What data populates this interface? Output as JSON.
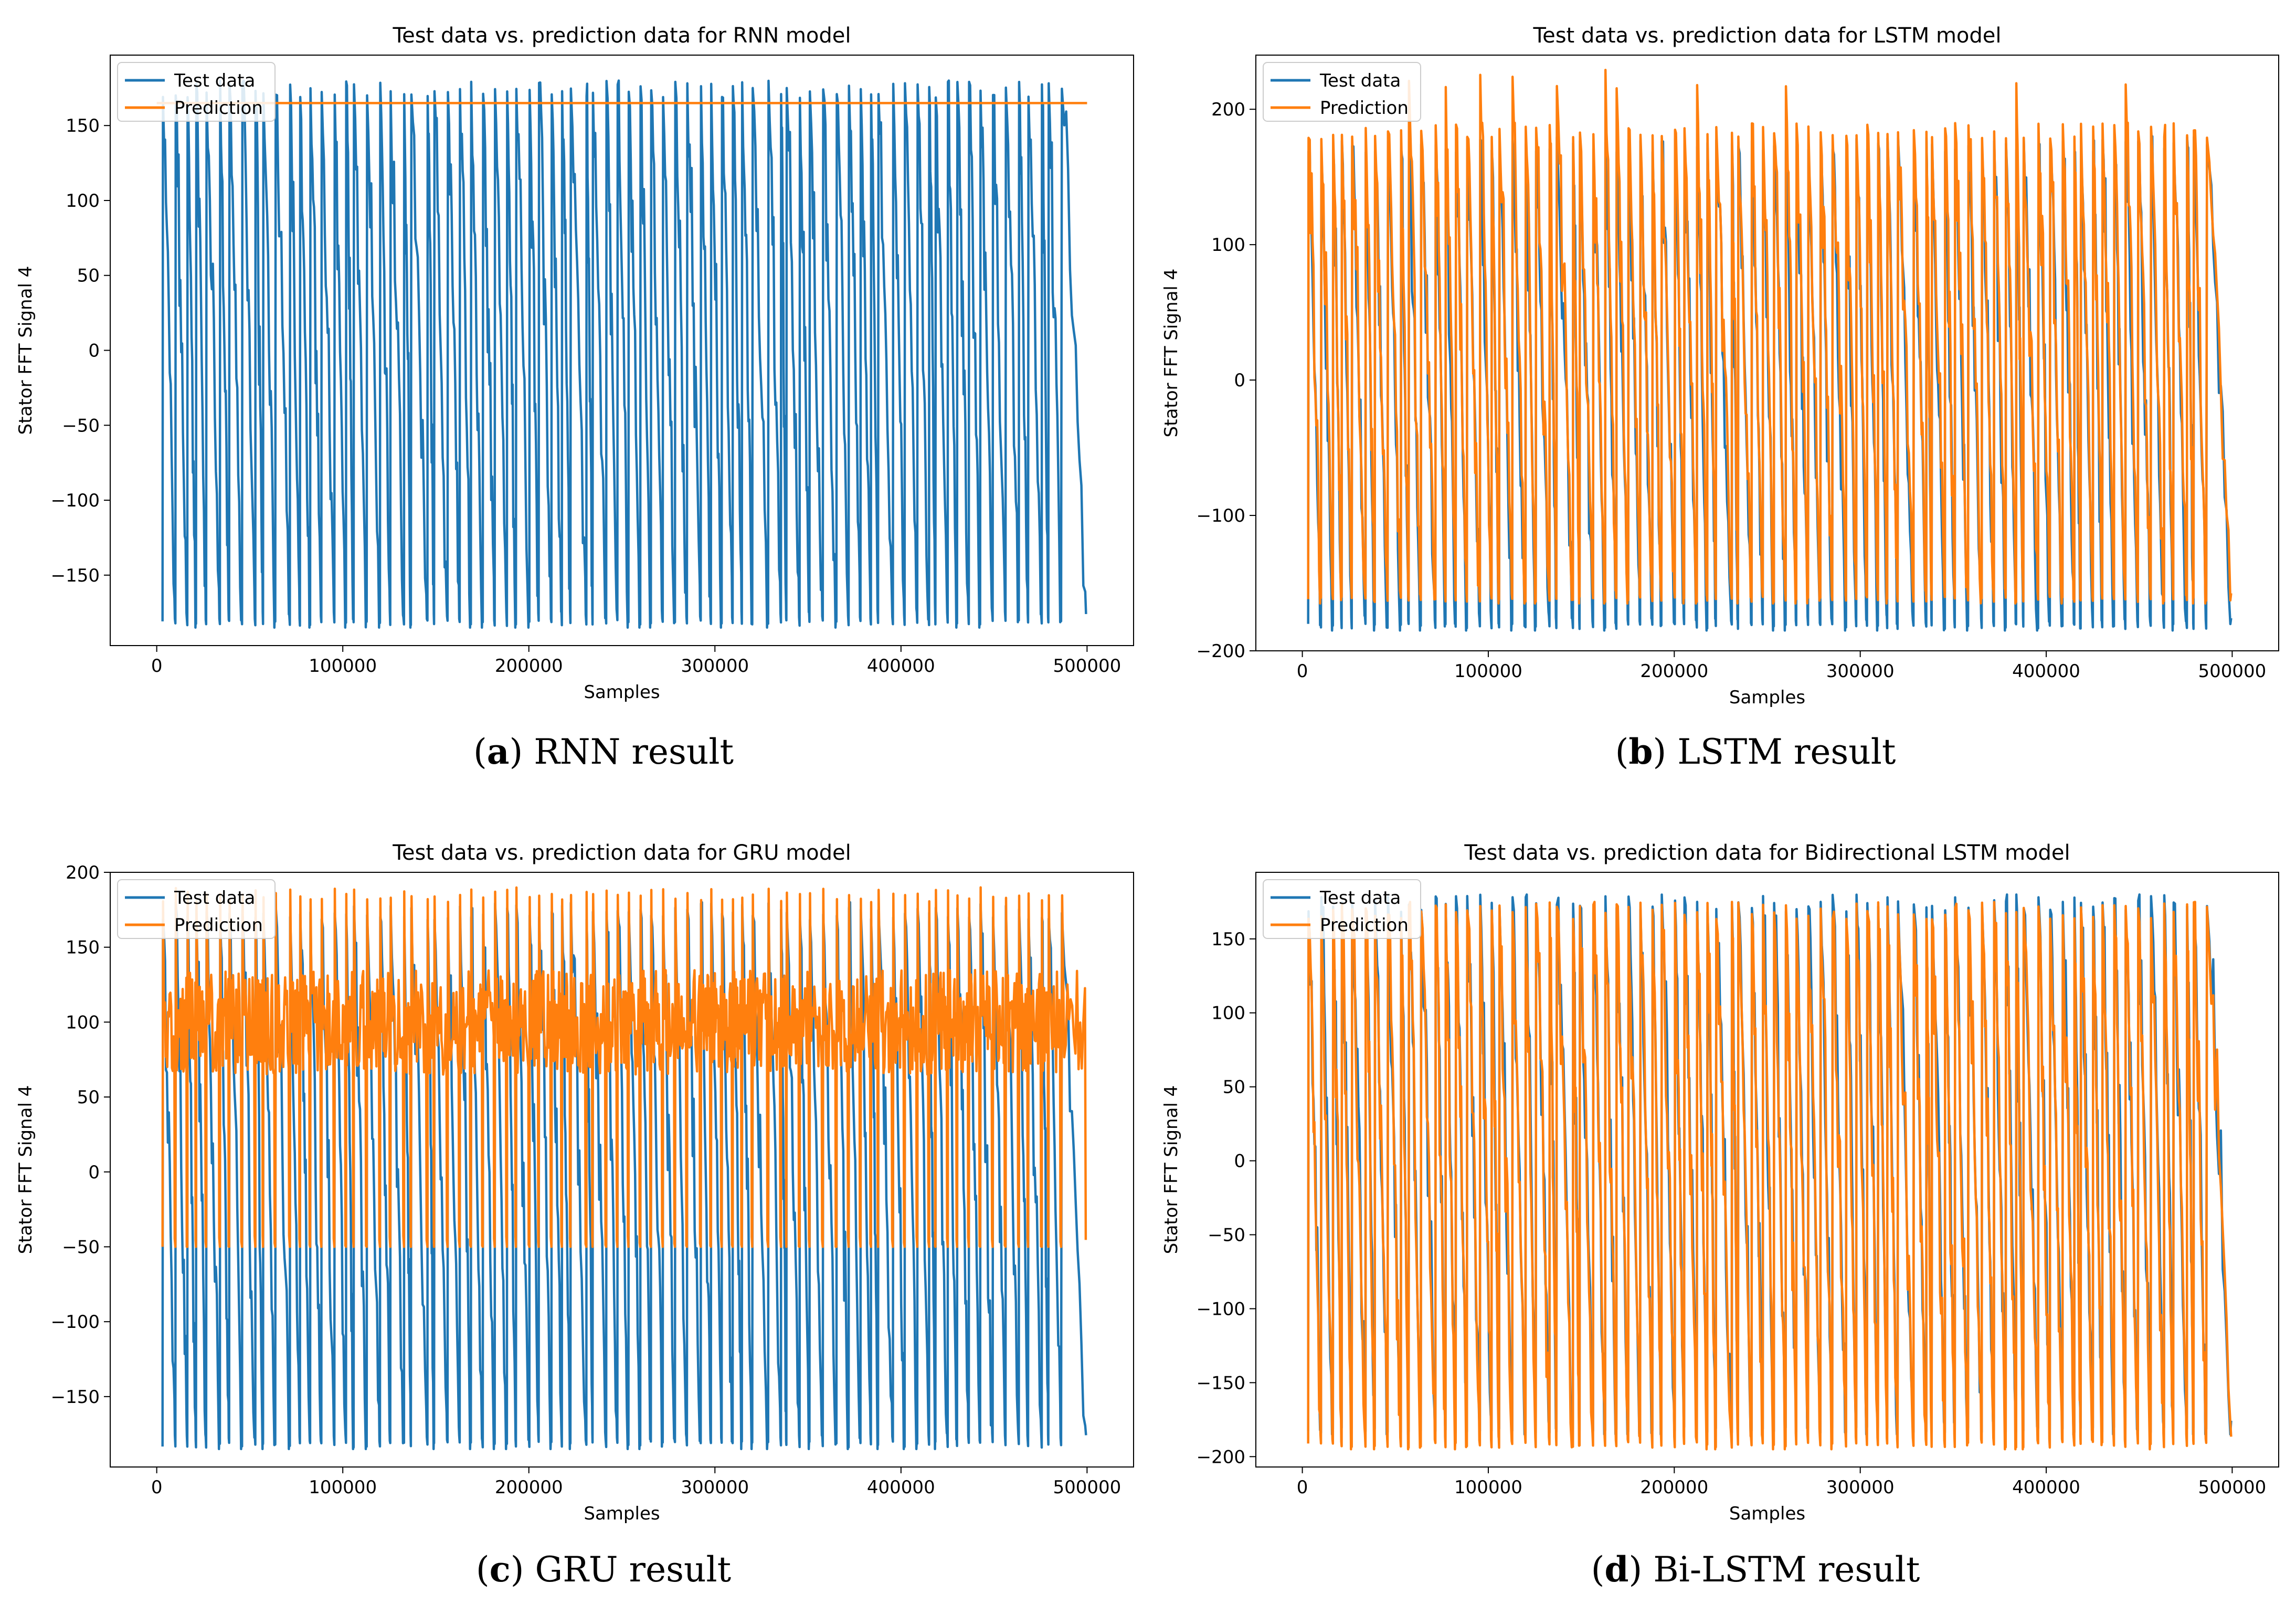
{
  "chart_data": [
    {
      "type": "line",
      "title": "Test data vs. prediction data for RNN model",
      "xlabel": "Samples",
      "ylabel": "Stator FFT Signal 4",
      "caption_letter": "a",
      "caption_text": " RNN result",
      "xlim": [
        -25000,
        525000
      ],
      "ylim": [
        -197,
        197
      ],
      "xticks": [
        0,
        100000,
        200000,
        300000,
        400000,
        500000
      ],
      "xtick_labels": [
        "0",
        "100000",
        "200000",
        "300000",
        "400000",
        "500000"
      ],
      "yticks": [
        150,
        100,
        50,
        0,
        -50,
        -100,
        -150
      ],
      "ytick_labels": [
        "150",
        "100",
        "50",
        "0",
        "−50",
        "−100",
        "−150"
      ],
      "legend": [
        "Test data",
        "Prediction"
      ],
      "legend_position": "top-left",
      "series": [
        {
          "name": "Test data",
          "color": "#1f77b4",
          "pattern": "oscillation",
          "range": [
            -180,
            180
          ],
          "cycles": 80
        },
        {
          "name": "Prediction",
          "color": "#ff7f0e",
          "pattern": "constant",
          "value": 165
        }
      ]
    },
    {
      "type": "line",
      "title": "Test data vs. prediction data for LSTM model",
      "xlabel": "Samples",
      "ylabel": "Stator FFT Signal 4",
      "caption_letter": "b",
      "caption_text": " LSTM result",
      "xlim": [
        -25000,
        525000
      ],
      "ylim": [
        -200,
        240
      ],
      "xticks": [
        0,
        100000,
        200000,
        300000,
        400000,
        500000
      ],
      "xtick_labels": [
        "0",
        "100000",
        "200000",
        "300000",
        "400000",
        "500000"
      ],
      "yticks": [
        200,
        100,
        0,
        -100,
        -200
      ],
      "ytick_labels": [
        "200",
        "100",
        "0",
        "−100",
        "−200"
      ],
      "legend": [
        "Test data",
        "Prediction"
      ],
      "legend_position": "top-left",
      "series": [
        {
          "name": "Test data",
          "color": "#1f77b4",
          "pattern": "oscillation",
          "range": [
            -180,
            180
          ],
          "cycles": 80
        },
        {
          "name": "Prediction",
          "color": "#ff7f0e",
          "pattern": "oscillation",
          "range": [
            -160,
            190
          ],
          "peak_max": 230,
          "cycles": 80
        }
      ]
    },
    {
      "type": "line",
      "title": "Test data vs. prediction data for GRU model",
      "xlabel": "Samples",
      "ylabel": "Stator FFT Signal 4",
      "caption_letter": "c",
      "caption_text": " GRU result",
      "xlim": [
        -25000,
        525000
      ],
      "ylim": [
        -197,
        200
      ],
      "xticks": [
        0,
        100000,
        200000,
        300000,
        400000,
        500000
      ],
      "xtick_labels": [
        "0",
        "100000",
        "200000",
        "300000",
        "400000",
        "500000"
      ],
      "yticks": [
        200,
        150,
        100,
        50,
        0,
        -50,
        -100,
        -150
      ],
      "ytick_labels": [
        "200",
        "150",
        "100",
        "50",
        "0",
        "−50",
        "−100",
        "−150"
      ],
      "legend": [
        "Test data",
        "Prediction"
      ],
      "legend_position": "top-left",
      "series": [
        {
          "name": "Test data",
          "color": "#1f77b4",
          "pattern": "oscillation",
          "range": [
            -180,
            180
          ],
          "cycles": 80
        },
        {
          "name": "Prediction",
          "color": "#ff7f0e",
          "pattern": "band",
          "range": [
            -50,
            190
          ],
          "center": 100,
          "cycles": 80
        }
      ]
    },
    {
      "type": "line",
      "title": "Test data vs. prediction data for Bidirectional LSTM model",
      "xlabel": "Samples",
      "ylabel": "Stator FFT Signal 4",
      "caption_letter": "d",
      "caption_text": " Bi-LSTM result",
      "xlim": [
        -25000,
        525000
      ],
      "ylim": [
        -207,
        195
      ],
      "xticks": [
        0,
        100000,
        200000,
        300000,
        400000,
        500000
      ],
      "xtick_labels": [
        "0",
        "100000",
        "200000",
        "300000",
        "400000",
        "500000"
      ],
      "yticks": [
        150,
        100,
        50,
        0,
        -50,
        -100,
        -150,
        -200
      ],
      "ytick_labels": [
        "150",
        "100",
        "50",
        "0",
        "−50",
        "−100",
        "−150",
        "−200"
      ],
      "legend": [
        "Test data",
        "Prediction"
      ],
      "legend_position": "top-left",
      "series": [
        {
          "name": "Test data",
          "color": "#1f77b4",
          "pattern": "oscillation",
          "range": [
            -180,
            180
          ],
          "cycles": 80
        },
        {
          "name": "Prediction",
          "color": "#ff7f0e",
          "pattern": "oscillation",
          "range": [
            -190,
            175
          ],
          "cycles": 80
        }
      ]
    }
  ]
}
